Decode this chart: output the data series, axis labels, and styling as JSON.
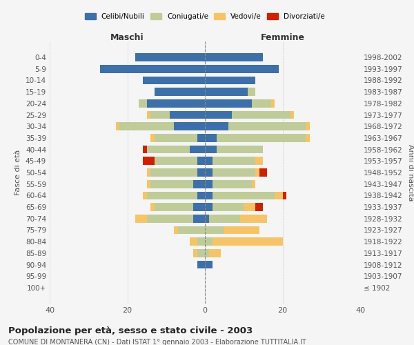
{
  "age_groups": [
    "100+",
    "95-99",
    "90-94",
    "85-89",
    "80-84",
    "75-79",
    "70-74",
    "65-69",
    "60-64",
    "55-59",
    "50-54",
    "45-49",
    "40-44",
    "35-39",
    "30-34",
    "25-29",
    "20-24",
    "15-19",
    "10-14",
    "5-9",
    "0-4"
  ],
  "birth_years": [
    "≤ 1902",
    "1903-1907",
    "1908-1912",
    "1913-1917",
    "1918-1922",
    "1923-1927",
    "1928-1932",
    "1933-1937",
    "1938-1942",
    "1943-1947",
    "1948-1952",
    "1953-1957",
    "1958-1962",
    "1963-1967",
    "1968-1972",
    "1973-1977",
    "1978-1982",
    "1983-1987",
    "1988-1992",
    "1993-1997",
    "1998-2002"
  ],
  "male": {
    "celibi": [
      0,
      0,
      2,
      0,
      0,
      0,
      3,
      3,
      2,
      3,
      2,
      2,
      4,
      2,
      8,
      9,
      15,
      13,
      16,
      27,
      18
    ],
    "coniugati": [
      0,
      0,
      0,
      2,
      2,
      7,
      12,
      10,
      13,
      11,
      12,
      11,
      11,
      11,
      14,
      5,
      2,
      0,
      0,
      0,
      0
    ],
    "vedovi": [
      0,
      0,
      0,
      1,
      2,
      1,
      3,
      1,
      1,
      1,
      1,
      0,
      0,
      1,
      1,
      1,
      0,
      0,
      0,
      0,
      0
    ],
    "divorziati": [
      0,
      0,
      0,
      0,
      0,
      0,
      0,
      0,
      0,
      0,
      0,
      3,
      1,
      0,
      0,
      0,
      0,
      0,
      0,
      0,
      0
    ]
  },
  "female": {
    "nubili": [
      0,
      0,
      2,
      0,
      0,
      0,
      1,
      2,
      2,
      2,
      2,
      2,
      3,
      3,
      6,
      7,
      12,
      11,
      13,
      19,
      15
    ],
    "coniugate": [
      0,
      0,
      0,
      1,
      2,
      5,
      8,
      8,
      16,
      10,
      11,
      11,
      12,
      23,
      20,
      15,
      5,
      2,
      0,
      0,
      0
    ],
    "vedove": [
      0,
      0,
      0,
      3,
      18,
      9,
      7,
      3,
      2,
      1,
      1,
      2,
      0,
      1,
      1,
      1,
      1,
      0,
      0,
      0,
      0
    ],
    "divorziate": [
      0,
      0,
      0,
      0,
      0,
      0,
      0,
      2,
      1,
      0,
      2,
      0,
      0,
      0,
      0,
      0,
      0,
      0,
      0,
      0,
      0
    ]
  },
  "colors": {
    "celibi_nubili": "#3d6fa8",
    "coniugati": "#bfcc99",
    "vedovi": "#f5c469",
    "divorziati": "#cc2200"
  },
  "title": "Popolazione per età, sesso e stato civile - 2003",
  "subtitle": "COMUNE DI MONTANERA (CN) - Dati ISTAT 1° gennaio 2003 - Elaborazione TUTTITALIA.IT",
  "xlabel_left": "Maschi",
  "xlabel_right": "Femmine",
  "ylabel_left": "Fasce di età",
  "ylabel_right": "Anni di nascita",
  "xlim": 40,
  "bg_color": "#f5f5f5",
  "grid_color": "#cccccc"
}
